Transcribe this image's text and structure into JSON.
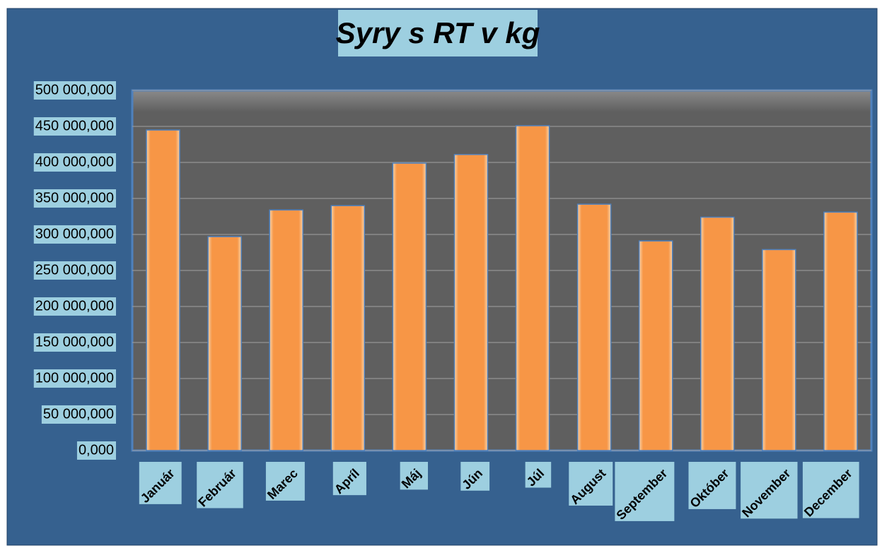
{
  "chart_data": {
    "type": "bar",
    "title": "Syry s RT v kg",
    "categories": [
      "Január",
      "Február",
      "Marec",
      "Apríl",
      "Máj",
      "Jún",
      "Júl",
      "August",
      "September",
      "Október",
      "November",
      "December"
    ],
    "values": [
      445000,
      297000,
      334000,
      340000,
      399000,
      411000,
      451000,
      342000,
      291000,
      324000,
      279000,
      331000
    ],
    "color": "#f79646",
    "ylim": [
      0,
      500000
    ],
    "yticks": [
      {
        "value": 0,
        "label": "0,000"
      },
      {
        "value": 50000,
        "label": "50 000,000"
      },
      {
        "value": 100000,
        "label": "100 000,000"
      },
      {
        "value": 150000,
        "label": "150 000,000"
      },
      {
        "value": 200000,
        "label": "200 000,000"
      },
      {
        "value": 250000,
        "label": "250 000,000"
      },
      {
        "value": 300000,
        "label": "300 000,000"
      },
      {
        "value": 350000,
        "label": "350 000,000"
      },
      {
        "value": 400000,
        "label": "400 000,000"
      },
      {
        "value": 450000,
        "label": "450 000,000"
      },
      {
        "value": 500000,
        "label": "500 000,000"
      }
    ],
    "grid": true
  }
}
